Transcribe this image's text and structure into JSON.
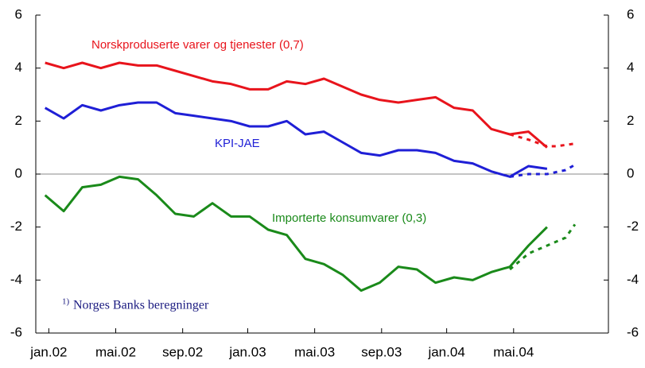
{
  "chart_data": {
    "type": "line",
    "xlim": [
      -0.5,
      30.3
    ],
    "xticks": [
      {
        "value": 0.2,
        "label": "jan.02"
      },
      {
        "value": 3.8,
        "label": "mai.02"
      },
      {
        "value": 7.4,
        "label": "sep.02"
      },
      {
        "value": 10.9,
        "label": "jan.03"
      },
      {
        "value": 14.5,
        "label": "mai.03"
      },
      {
        "value": 18.1,
        "label": "sep.03"
      },
      {
        "value": 21.6,
        "label": "jan.04"
      },
      {
        "value": 25.2,
        "label": "mai.04"
      }
    ],
    "ylim": [
      -6,
      6
    ],
    "yticks": [
      6,
      4,
      2,
      0,
      -2,
      -4,
      -6
    ],
    "series": [
      {
        "name": "Norskproduserte varer og tjenester (0,7)",
        "color": "#e8141c",
        "x": [
          0,
          1,
          2,
          3,
          4,
          5,
          6,
          7,
          8,
          9,
          10,
          11,
          12,
          13,
          14,
          15,
          16,
          17,
          18,
          19,
          20,
          21,
          22,
          23,
          24,
          25,
          26,
          27
        ],
        "values": [
          4.2,
          4.0,
          4.2,
          4.0,
          4.2,
          4.1,
          4.1,
          3.9,
          3.7,
          3.5,
          3.4,
          3.2,
          3.2,
          3.5,
          3.4,
          3.6,
          3.3,
          3.0,
          2.8,
          2.7,
          2.8,
          2.9,
          2.5,
          2.4,
          1.7,
          1.5,
          1.6,
          1.0
        ],
        "forecast_x": [
          25,
          26,
          27,
          27.5,
          28.5
        ],
        "forecast_values": [
          1.5,
          1.3,
          1.05,
          1.05,
          1.15
        ]
      },
      {
        "name": "KPI-JAE",
        "color": "#1f1fd6",
        "x": [
          0,
          1,
          2,
          3,
          4,
          5,
          6,
          7,
          8,
          9,
          10,
          11,
          12,
          13,
          14,
          15,
          16,
          17,
          18,
          19,
          20,
          21,
          22,
          23,
          24,
          25,
          26,
          27
        ],
        "values": [
          2.5,
          2.1,
          2.6,
          2.4,
          2.6,
          2.7,
          2.7,
          2.3,
          2.2,
          2.1,
          2.0,
          1.8,
          1.8,
          2.0,
          1.5,
          1.6,
          1.2,
          0.8,
          0.7,
          0.9,
          0.9,
          0.8,
          0.5,
          0.4,
          0.1,
          -0.1,
          0.3,
          0.2
        ],
        "forecast_x": [
          25,
          26,
          27,
          28,
          28.5
        ],
        "forecast_values": [
          -0.1,
          0.0,
          0.0,
          0.15,
          0.35
        ]
      },
      {
        "name": "Importerte konsumvarer (0,3)",
        "color": "#1a8a1a",
        "x": [
          0,
          1,
          2,
          3,
          4,
          5,
          6,
          7,
          8,
          9,
          10,
          11,
          12,
          13,
          14,
          15,
          16,
          17,
          18,
          19,
          20,
          21,
          22,
          23,
          24,
          25,
          26,
          27
        ],
        "values": [
          -0.8,
          -1.4,
          -0.5,
          -0.4,
          -0.1,
          -0.2,
          -0.8,
          -1.5,
          -1.6,
          -1.1,
          -1.6,
          -1.6,
          -2.1,
          -2.3,
          -3.2,
          -3.4,
          -3.8,
          -4.4,
          -4.1,
          -3.5,
          -3.6,
          -4.1,
          -3.9,
          -4.0,
          -3.7,
          -3.5,
          -2.7,
          -2.0
        ],
        "forecast_x": [
          25,
          26,
          27,
          28,
          28.5
        ],
        "forecast_values": [
          -3.6,
          -3.0,
          -2.7,
          -2.4,
          -1.9
        ]
      }
    ],
    "footnote_marker": "1)",
    "footnote": "Norges Banks beregninger"
  }
}
